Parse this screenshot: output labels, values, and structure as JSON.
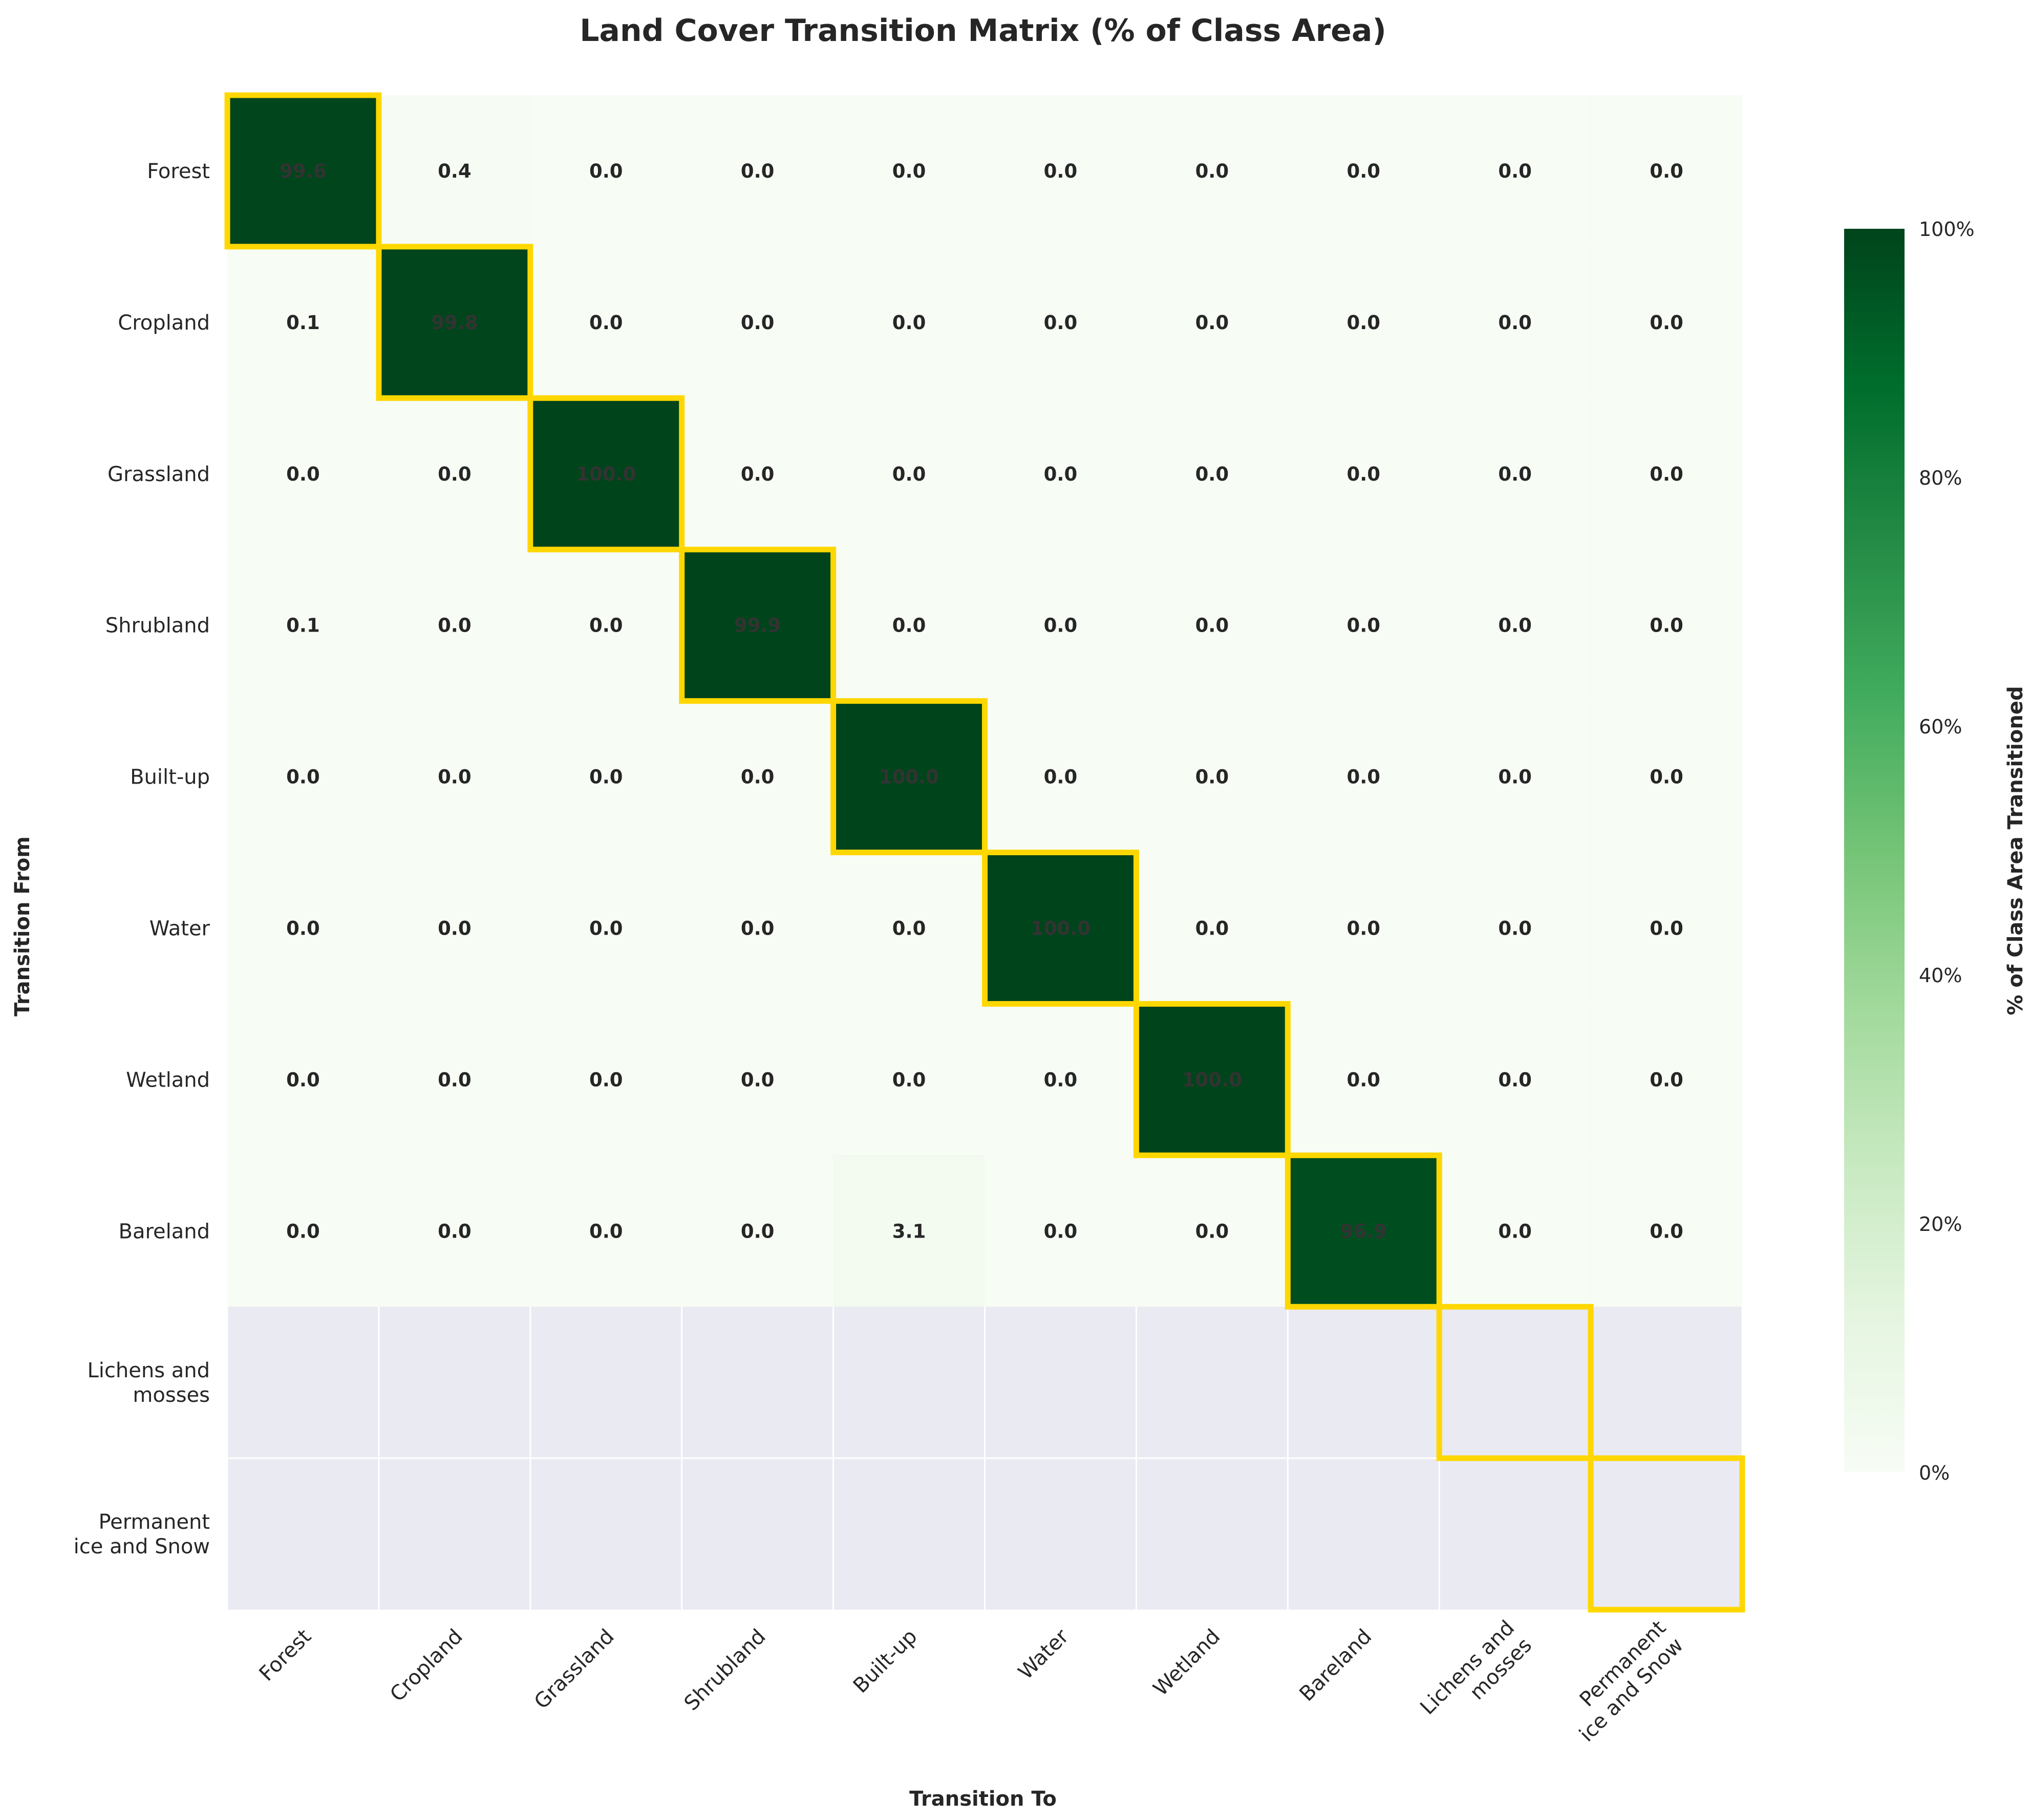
{
  "chart_data": {
    "type": "heatmap",
    "title": "Land Cover Transition Matrix (% of Class Area)",
    "xlabel": "Transition To",
    "ylabel": "Transition From",
    "row_labels": [
      "Forest",
      "Cropland",
      "Grassland",
      "Shrubland",
      "Built-up",
      "Water",
      "Wetland",
      "Bareland",
      "Lichens and\nmosses",
      "Permanent\nice and Snow"
    ],
    "col_labels": [
      "Forest",
      "Cropland",
      "Grassland",
      "Shrubland",
      "Built-up",
      "Water",
      "Wetland",
      "Bareland",
      "Lichens and\nmosses",
      "Permanent\nice and Snow"
    ],
    "values": [
      [
        99.6,
        0.4,
        0.0,
        0.0,
        0.0,
        0.0,
        0.0,
        0.0,
        0.0,
        0.0
      ],
      [
        0.1,
        99.8,
        0.0,
        0.0,
        0.0,
        0.0,
        0.0,
        0.0,
        0.0,
        0.0
      ],
      [
        0.0,
        0.0,
        100.0,
        0.0,
        0.0,
        0.0,
        0.0,
        0.0,
        0.0,
        0.0
      ],
      [
        0.1,
        0.0,
        0.0,
        99.9,
        0.0,
        0.0,
        0.0,
        0.0,
        0.0,
        0.0
      ],
      [
        0.0,
        0.0,
        0.0,
        0.0,
        100.0,
        0.0,
        0.0,
        0.0,
        0.0,
        0.0
      ],
      [
        0.0,
        0.0,
        0.0,
        0.0,
        0.0,
        100.0,
        0.0,
        0.0,
        0.0,
        0.0
      ],
      [
        0.0,
        0.0,
        0.0,
        0.0,
        0.0,
        0.0,
        100.0,
        0.0,
        0.0,
        0.0
      ],
      [
        0.0,
        0.0,
        0.0,
        0.0,
        3.1,
        0.0,
        0.0,
        96.9,
        0.0,
        0.0
      ],
      [
        null,
        null,
        null,
        null,
        null,
        null,
        null,
        null,
        null,
        null
      ],
      [
        null,
        null,
        null,
        null,
        null,
        null,
        null,
        null,
        null,
        null
      ]
    ],
    "value_format": "0.0",
    "highlight_diagonal": true,
    "highlight_color": "#FFD700",
    "colormap": "Greens",
    "vmin": 0,
    "vmax": 100,
    "missing_color": "#EAEAF2",
    "colorbar": {
      "label": "% of Class Area Transitioned",
      "ticks": [
        0,
        20,
        40,
        60,
        80,
        100
      ],
      "tick_labels": [
        "0%",
        "20%",
        "40%",
        "60%",
        "80%",
        "100%"
      ]
    }
  }
}
